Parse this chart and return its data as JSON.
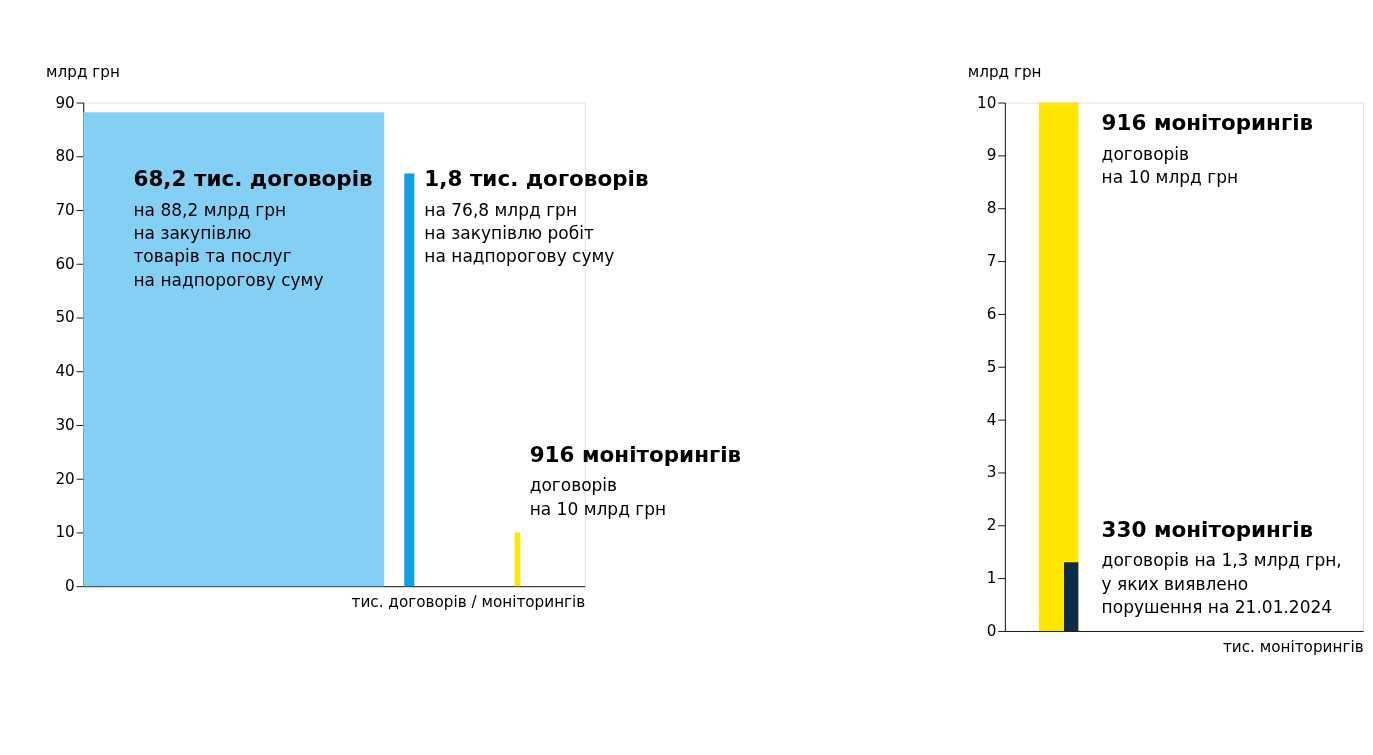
{
  "chart_data": [
    {
      "type": "bar",
      "categories": [
        null,
        null,
        null
      ],
      "values": [
        88.2,
        76.8,
        10
      ],
      "colors": [
        "#84d0f4",
        "#0ea0e6",
        "#ffe600"
      ],
      "ylim": [
        0,
        90
      ],
      "yticks": [
        0,
        10,
        20,
        30,
        40,
        50,
        60,
        70,
        80,
        90
      ],
      "ylabel": "млрд грн",
      "xlabel": "тис. договорів / моніторингів",
      "grid": false,
      "annotations": [
        "68,2 тис. договорів\nна 88,2 млрд грн\nна закупівлю\nтоварів та послуг\nна надпорогову суму",
        "1,8 тис. договорів\nна 76,8 млрд грн\nна закупівлю робіт\nна надпорогову суму",
        "916 моніторингів\nдоговорів\nна 10 млрд грн"
      ]
    },
    {
      "type": "bar",
      "categories": [
        null
      ],
      "series": [
        {
          "color": "#ffe600",
          "values": [
            10
          ]
        },
        {
          "color": "#0d2c47",
          "values": [
            1.3
          ]
        }
      ],
      "ylim": [
        0,
        10
      ],
      "yticks": [
        0,
        1,
        2,
        3,
        4,
        5,
        6,
        7,
        8,
        9,
        10
      ],
      "ylabel": "млрд грн",
      "xlabel": "тис. моніторингів",
      "grid": false,
      "annotations": [
        "916 моніторингів\nдоговорів\nна 10 млрд грн",
        "330 моніторингів\nдоговорів на 1,3 млрд грн,\nу яких виявлено\nпорушення на 21.01.2024"
      ]
    }
  ]
}
